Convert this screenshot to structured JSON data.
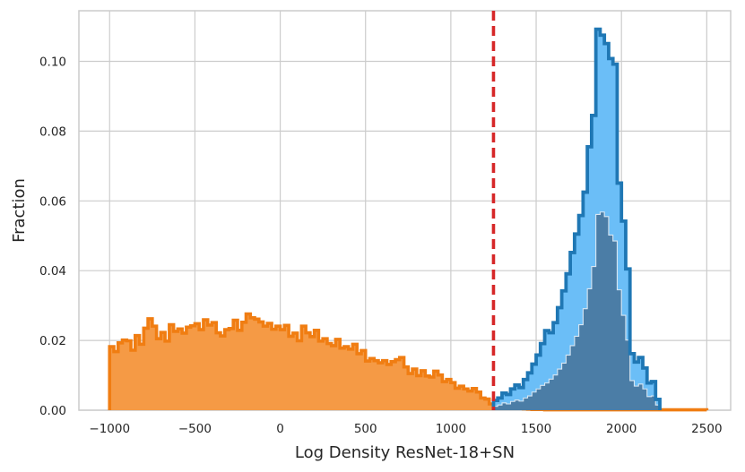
{
  "chart_data": {
    "type": "area",
    "xlabel": "Log Density ResNet-18+SN",
    "ylabel": "Fraction",
    "xlim": [
      -1180,
      2640
    ],
    "ylim": [
      0,
      0.1145
    ],
    "xticks": [
      -1000,
      -500,
      0,
      500,
      1000,
      1500,
      2000,
      2500
    ],
    "xtick_labels": [
      "−1000",
      "−500",
      "0",
      "500",
      "1000",
      "1500",
      "2000",
      "2500"
    ],
    "yticks": [
      0.0,
      0.02,
      0.04,
      0.06,
      0.08,
      0.1
    ],
    "ytick_labels": [
      "0.00",
      "0.02",
      "0.04",
      "0.06",
      "0.08",
      "0.10"
    ],
    "grid": true,
    "threshold": 1250,
    "colors": {
      "orange_fill": "#f59a45",
      "orange_line": "#f07d12",
      "blue_fill": "#6bbef7",
      "blue_line": "#1f77b4",
      "dark_fill": "#4b7da6",
      "dark_line": "#d8e6f2",
      "threshold": "#d62728"
    },
    "series": [
      {
        "step": 25,
        "x": [
          -1000,
          -975,
          -950,
          -925,
          -900,
          -875,
          -850,
          -825,
          -800,
          -775,
          -750,
          -725,
          -700,
          -675,
          -650,
          -625,
          -600,
          -575,
          -550,
          -525,
          -500,
          -475,
          -450,
          -425,
          -400,
          -375,
          -350,
          -325,
          -300,
          -275,
          -250,
          -225,
          -200,
          -175,
          -150,
          -125,
          -100,
          -75,
          -50,
          -25,
          0,
          25,
          50,
          75,
          100,
          125,
          150,
          175,
          200,
          225,
          250,
          275,
          300,
          325,
          350,
          375,
          400,
          425,
          450,
          475,
          500,
          525,
          550,
          575,
          600,
          625,
          650,
          675,
          700,
          725,
          750,
          775,
          800,
          825,
          850,
          875,
          900,
          925,
          950,
          975,
          1000,
          1025,
          1050,
          1075,
          1100,
          1125,
          1150,
          1175,
          1200,
          1225,
          1250,
          1275,
          1300,
          1325,
          1350,
          1375,
          1400,
          1425,
          1450,
          1475,
          1500,
          1525,
          1550,
          1575,
          1600,
          1625,
          1650,
          1675,
          1700,
          1725,
          1750,
          1775,
          1800,
          1825,
          1850,
          1875,
          1900,
          1925,
          1950,
          1975,
          2000,
          2025,
          2050,
          2075,
          2100,
          2125,
          2150,
          2175,
          2200,
          2225,
          2250,
          2275,
          2300,
          2325,
          2350,
          2375,
          2400,
          2425,
          2450,
          2475
        ],
        "values": [
          0.0182,
          0.0168,
          0.0193,
          0.0201,
          0.0199,
          0.0172,
          0.0214,
          0.0189,
          0.0235,
          0.0262,
          0.0241,
          0.0205,
          0.0223,
          0.0198,
          0.0245,
          0.0226,
          0.0233,
          0.0221,
          0.0238,
          0.0242,
          0.0248,
          0.0231,
          0.0259,
          0.0244,
          0.0251,
          0.0222,
          0.0213,
          0.0231,
          0.0234,
          0.0258,
          0.0229,
          0.0252,
          0.0276,
          0.0265,
          0.0261,
          0.0253,
          0.0241,
          0.0249,
          0.0232,
          0.0241,
          0.0231,
          0.0243,
          0.0212,
          0.0221,
          0.0199,
          0.0241,
          0.0222,
          0.0211,
          0.0229,
          0.0198,
          0.0205,
          0.0191,
          0.0185,
          0.0203,
          0.0178,
          0.0182,
          0.0175,
          0.0189,
          0.0162,
          0.0171,
          0.0141,
          0.0148,
          0.0142,
          0.0136,
          0.0142,
          0.0131,
          0.0139,
          0.0145,
          0.0151,
          0.0124,
          0.0105,
          0.0118,
          0.0099,
          0.0113,
          0.0098,
          0.0095,
          0.0112,
          0.0101,
          0.0082,
          0.0088,
          0.0079,
          0.0063,
          0.0069,
          0.0061,
          0.0055,
          0.0062,
          0.0052,
          0.0035,
          0.0032,
          0.0018,
          0.0016,
          0.0012,
          0.0011,
          0.0009,
          0.0007,
          0.0005,
          0.0006,
          0.0004,
          0.0003,
          0.0002,
          0.0002,
          0.0002,
          0.0001,
          0.0001,
          0.0001,
          0.0001,
          0.0001,
          0.0001,
          0.0001,
          0.0001,
          0.0001,
          0.0001,
          0.0001,
          0.0001,
          0.0001,
          0.0001,
          0.0001,
          0.0001,
          0.0001,
          0.0001,
          0.0001,
          0.0001,
          0.0001,
          0.0001,
          0.0001,
          0.0001,
          0.0001,
          0.0001,
          0.0001,
          0.0001,
          0.0001,
          0.0001,
          0.0001,
          0.0001,
          0.0001,
          0.0001,
          0.0001,
          0.0001,
          0.0001,
          0.0001
        ]
      },
      {
        "step": 25,
        "x": [
          1250,
          1275,
          1300,
          1325,
          1350,
          1375,
          1400,
          1425,
          1450,
          1475,
          1500,
          1525,
          1550,
          1575,
          1600,
          1625,
          1650,
          1675,
          1700,
          1725,
          1750,
          1775,
          1800,
          1825,
          1850,
          1875,
          1900,
          1925,
          1950,
          1975,
          2000,
          2025,
          2050,
          2075,
          2100,
          2125,
          2150,
          2175,
          2200
        ],
        "values": [
          0.0028,
          0.0035,
          0.0049,
          0.0045,
          0.0061,
          0.0072,
          0.0065,
          0.0088,
          0.0107,
          0.0132,
          0.0158,
          0.0191,
          0.0228,
          0.0222,
          0.0251,
          0.0294,
          0.0342,
          0.0391,
          0.0452,
          0.0505,
          0.0558,
          0.0625,
          0.0755,
          0.0845,
          0.1092,
          0.1075,
          0.1051,
          0.1008,
          0.0992,
          0.0651,
          0.0542,
          0.0405,
          0.0162,
          0.0138,
          0.0151,
          0.0121,
          0.0078,
          0.0082,
          0.0031
        ]
      },
      {
        "step": 25,
        "x": [
          1250,
          1275,
          1300,
          1325,
          1350,
          1375,
          1400,
          1425,
          1450,
          1475,
          1500,
          1525,
          1550,
          1575,
          1600,
          1625,
          1650,
          1675,
          1700,
          1725,
          1750,
          1775,
          1800,
          1825,
          1850,
          1875,
          1900,
          1925,
          1950,
          1975,
          2000,
          2025,
          2050,
          2075,
          2100,
          2125,
          2150,
          2175,
          2200
        ],
        "values": [
          0.0011,
          0.0015,
          0.0021,
          0.0018,
          0.0025,
          0.0029,
          0.0026,
          0.0035,
          0.0041,
          0.0052,
          0.0061,
          0.0071,
          0.0078,
          0.0089,
          0.0101,
          0.0118,
          0.0135,
          0.0158,
          0.0185,
          0.0212,
          0.0245,
          0.0291,
          0.0348,
          0.0412,
          0.0561,
          0.0568,
          0.0555,
          0.0502,
          0.0485,
          0.0345,
          0.0272,
          0.0201,
          0.0085,
          0.0069,
          0.0075,
          0.0061,
          0.0039,
          0.0041,
          0.0015
        ]
      }
    ]
  }
}
